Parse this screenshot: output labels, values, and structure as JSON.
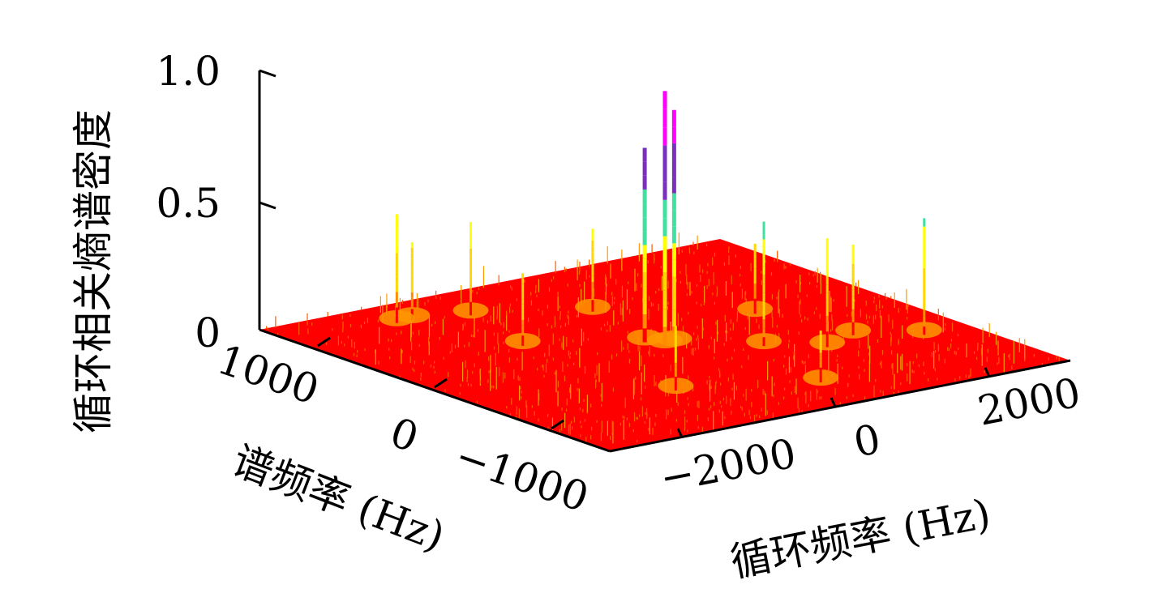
{
  "chart_data": {
    "type": "surface",
    "title": "",
    "zlabel": "循环相关熵谱密度",
    "xlabel": "谱频率 (Hz)",
    "ylabel": "循环频率 (Hz)",
    "z_ticks": [
      "0",
      "0.5",
      "1.0"
    ],
    "x_ticks": [
      "1000",
      "0",
      "−1000"
    ],
    "y_ticks": [
      "−2000",
      "0",
      "2000"
    ],
    "z_range": [
      0,
      1.0
    ],
    "x_range": [
      1400,
      -1400
    ],
    "y_range": [
      -3000,
      3000
    ],
    "surface_base_color": "#ff0000",
    "colormap": [
      "#ff0000",
      "#ff8c00",
      "#ffd700",
      "#ffff00",
      "#40e0a0",
      "#7b2fbe",
      "#ff00ff"
    ],
    "peaks": [
      {
        "spectral_freq": 0,
        "cyclic_freq": 0,
        "value": 0.98
      },
      {
        "spectral_freq": 0,
        "cyclic_freq": 120,
        "value": 0.9
      },
      {
        "spectral_freq": 100,
        "cyclic_freq": -100,
        "value": 0.75
      },
      {
        "spectral_freq": -300,
        "cyclic_freq": 800,
        "value": 0.48
      },
      {
        "spectral_freq": 1100,
        "cyclic_freq": -1700,
        "value": 0.42
      },
      {
        "spectral_freq": 1100,
        "cyclic_freq": -1500,
        "value": 0.3
      },
      {
        "spectral_freq": 1000,
        "cyclic_freq": -900,
        "value": 0.36
      },
      {
        "spectral_freq": 700,
        "cyclic_freq": 200,
        "value": 0.32
      },
      {
        "spectral_freq": -500,
        "cyclic_freq": 1300,
        "value": 0.42
      },
      {
        "spectral_freq": -600,
        "cyclic_freq": 2400,
        "value": 0.45
      },
      {
        "spectral_freq": -400,
        "cyclic_freq": 1800,
        "value": 0.35
      },
      {
        "spectral_freq": 400,
        "cyclic_freq": -1200,
        "value": 0.28
      },
      {
        "spectral_freq": -700,
        "cyclic_freq": -1000,
        "value": 0.25
      },
      {
        "spectral_freq": 200,
        "cyclic_freq": 1500,
        "value": 0.27
      },
      {
        "spectral_freq": -1000,
        "cyclic_freq": 400,
        "value": 0.2
      }
    ]
  }
}
